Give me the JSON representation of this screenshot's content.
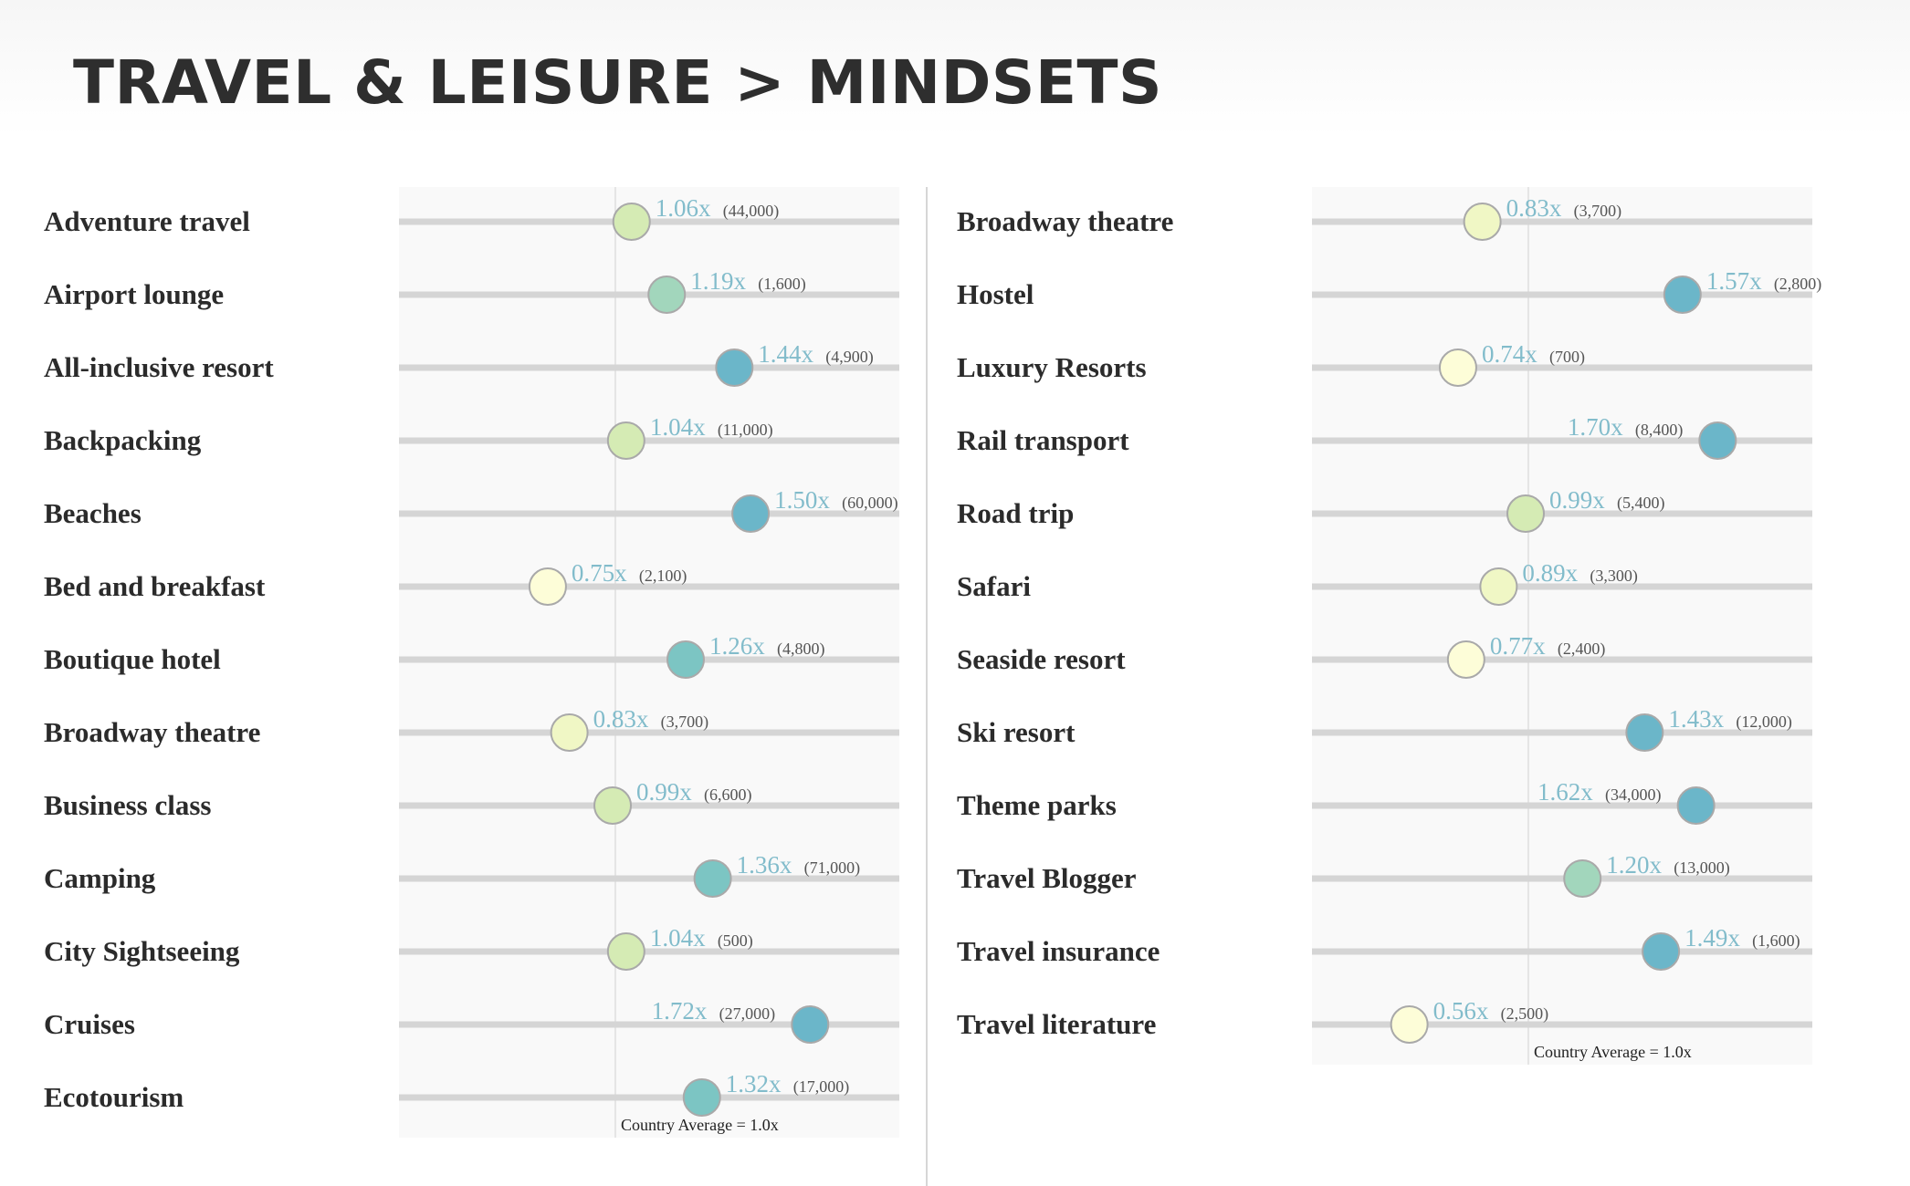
{
  "title": "TRAVEL & LEISURE > MINDSETS",
  "colors": {
    "marker_scale": [
      "#fdfdd8",
      "#f0f7c5",
      "#d5ebb4",
      "#a2d6bc",
      "#7cc5c3",
      "#6bb6c9"
    ],
    "track": "#d5d5d5",
    "reference_line": "#dedede",
    "panel_background": "#f9f9f9",
    "ratio_text": "#82bccb",
    "label_text": "#2b2b2b"
  },
  "chart_data": [
    {
      "type": "dot",
      "reference_value": 1.0,
      "reference_label": "Country Average = 1.0x",
      "xlim": [
        0.2,
        2.05
      ],
      "categories": [
        "Adventure travel",
        "Airport lounge",
        "All-inclusive resort",
        "Backpacking",
        "Beaches",
        "Bed and breakfast",
        "Boutique hotel",
        "Broadway theatre",
        "Business class",
        "Camping",
        "City Sightseeing",
        "Cruises",
        "Ecotourism"
      ],
      "values": [
        1.06,
        1.19,
        1.44,
        1.04,
        1.5,
        0.75,
        1.26,
        0.83,
        0.99,
        1.36,
        1.04,
        1.72,
        1.32
      ],
      "value_labels": [
        "1.06x",
        "1.19x",
        "1.44x",
        "1.04x",
        "1.50x",
        "0.75x",
        "1.26x",
        "0.83x",
        "0.99x",
        "1.36x",
        "1.04x",
        "1.72x",
        "1.32x"
      ],
      "counts": [
        "(44,000)",
        "(1,600)",
        "(4,900)",
        "(11,000)",
        "(60,000)",
        "(2,100)",
        "(4,800)",
        "(3,700)",
        "(6,600)",
        "(71,000)",
        "(500)",
        "(27,000)",
        "(17,000)"
      ]
    },
    {
      "type": "dot",
      "reference_value": 1.0,
      "reference_label": "Country Average = 1.0x",
      "xlim": [
        0.2,
        2.05
      ],
      "categories": [
        "Broadway theatre",
        "Hostel",
        "Luxury Resorts",
        "Rail transport",
        "Road trip",
        "Safari",
        "Seaside resort",
        "Ski resort",
        "Theme parks",
        "Travel Blogger",
        "Travel insurance",
        "Travel literature"
      ],
      "values": [
        0.83,
        1.57,
        0.74,
        1.7,
        0.99,
        0.89,
        0.77,
        1.43,
        1.62,
        1.2,
        1.49,
        0.56
      ],
      "value_labels": [
        "0.83x",
        "1.57x",
        "0.74x",
        "1.70x",
        "0.99x",
        "0.89x",
        "0.77x",
        "1.43x",
        "1.62x",
        "1.20x",
        "1.49x",
        "0.56x"
      ],
      "counts": [
        "(3,700)",
        "(2,800)",
        "(700)",
        "(8,400)",
        "(5,400)",
        "(3,300)",
        "(2,400)",
        "(12,000)",
        "(34,000)",
        "(13,000)",
        "(1,600)",
        "(2,500)"
      ]
    }
  ]
}
